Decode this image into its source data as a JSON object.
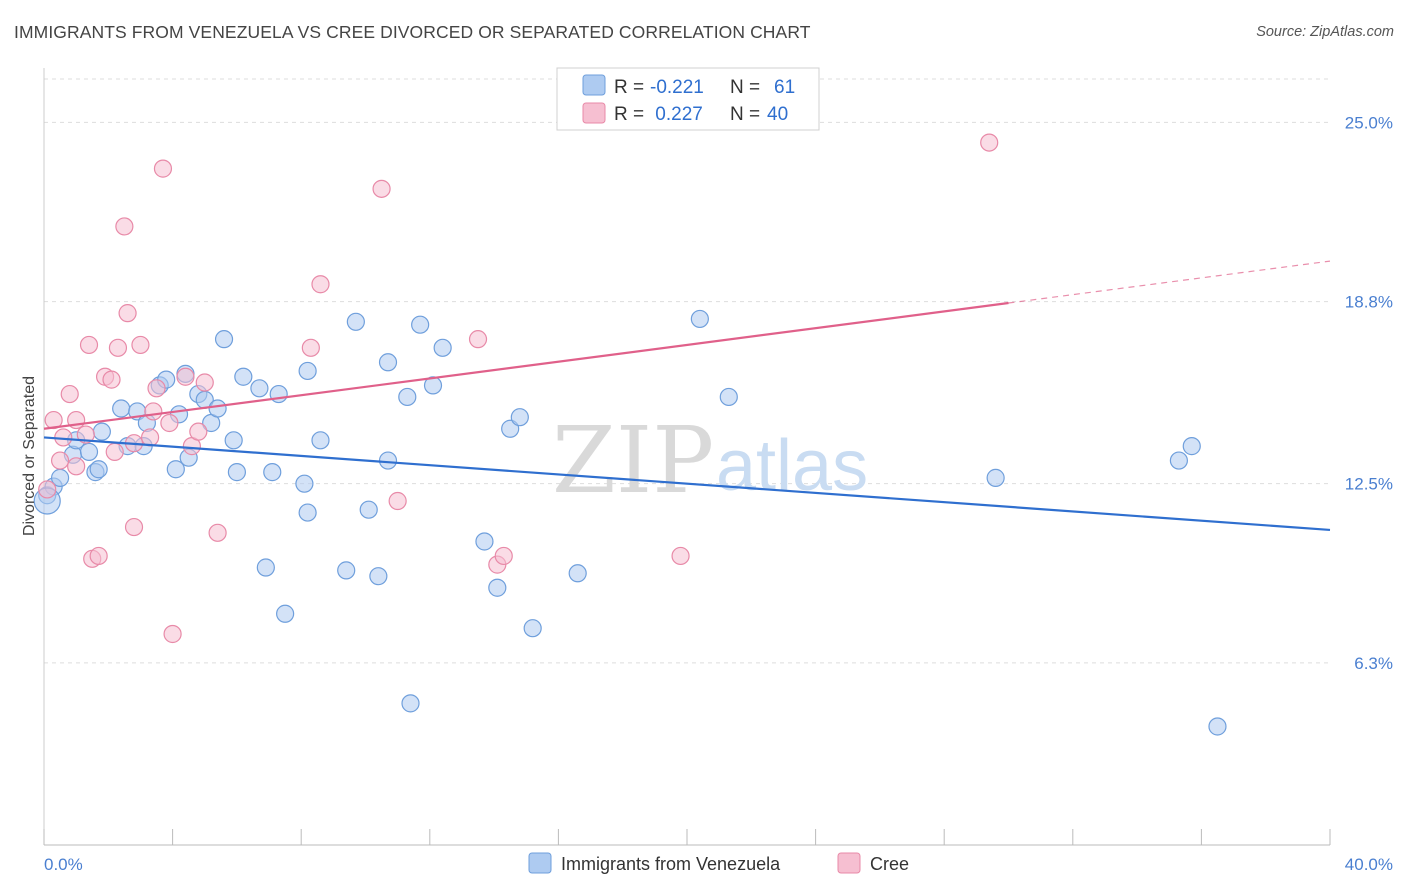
{
  "header": {
    "title": "IMMIGRANTS FROM VENEZUELA VS CREE DIVORCED OR SEPARATED CORRELATION CHART",
    "source": "Source: ZipAtlas.com"
  },
  "watermark": {
    "zip": "ZIP",
    "atlas": "atlas"
  },
  "colors": {
    "blue_fill": "#aecbf1",
    "blue_stroke": "#6f9fdc",
    "blue_line": "#2f6fcf",
    "pink_fill": "#f6bfd1",
    "pink_stroke": "#e88aa8",
    "pink_line": "#e0608a",
    "grid": "#dddddd",
    "axis_text": "#4a7fd0"
  },
  "legend": {
    "rows": [
      {
        "r_label": "R = ",
        "r_value": "-0.221",
        "n_label": "N = ",
        "n_value": "61"
      },
      {
        "r_label": "R = ",
        "r_value": " 0.227",
        "n_label": "N = ",
        "n_value": "40"
      }
    ]
  },
  "bottom_legend": [
    "Immigrants from Venezuela",
    "Cree"
  ],
  "chart_data": {
    "type": "scatter",
    "title": "IMMIGRANTS FROM VENEZUELA VS CREE DIVORCED OR SEPARATED CORRELATION CHART",
    "xlabel": "",
    "ylabel": "Divorced or Separated",
    "xlim": [
      0,
      40
    ],
    "ylim": [
      0,
      26.5
    ],
    "x_tick_labels": [
      "0.0%",
      "40.0%"
    ],
    "y_ticks": [
      6.3,
      12.5,
      18.8,
      25.0
    ],
    "y_tick_labels": [
      "6.3%",
      "12.5%",
      "18.8%",
      "25.0%"
    ],
    "grid": true,
    "legend_position": "top-center",
    "series": [
      {
        "name": "Immigrants from Venezuela",
        "color": "#aecbf1",
        "trend": {
          "x": [
            0,
            40
          ],
          "y": [
            14.1,
            10.9
          ],
          "dashed_from": null
        },
        "points": [
          [
            0.1,
            12.1
          ],
          [
            0.3,
            12.4
          ],
          [
            0.5,
            12.7
          ],
          [
            0.9,
            13.5
          ],
          [
            1.0,
            14.0
          ],
          [
            1.4,
            13.6
          ],
          [
            1.6,
            12.9
          ],
          [
            1.8,
            14.3
          ],
          [
            1.7,
            13.0
          ],
          [
            2.4,
            15.1
          ],
          [
            2.6,
            13.8
          ],
          [
            2.9,
            15.0
          ],
          [
            3.2,
            14.6
          ],
          [
            3.1,
            13.8
          ],
          [
            3.6,
            15.9
          ],
          [
            3.8,
            16.1
          ],
          [
            4.1,
            13.0
          ],
          [
            4.2,
            14.9
          ],
          [
            4.4,
            16.3
          ],
          [
            4.5,
            13.4
          ],
          [
            4.8,
            15.6
          ],
          [
            5.0,
            15.4
          ],
          [
            5.2,
            14.6
          ],
          [
            5.4,
            15.1
          ],
          [
            5.6,
            17.5
          ],
          [
            5.9,
            14.0
          ],
          [
            6.0,
            12.9
          ],
          [
            6.2,
            16.2
          ],
          [
            6.7,
            15.8
          ],
          [
            6.9,
            9.6
          ],
          [
            7.1,
            12.9
          ],
          [
            7.5,
            8.0
          ],
          [
            7.3,
            15.6
          ],
          [
            8.2,
            16.4
          ],
          [
            8.1,
            12.5
          ],
          [
            8.6,
            14.0
          ],
          [
            8.2,
            11.5
          ],
          [
            9.4,
            9.5
          ],
          [
            9.7,
            18.1
          ],
          [
            10.1,
            11.6
          ],
          [
            10.4,
            9.3
          ],
          [
            10.7,
            16.7
          ],
          [
            10.7,
            13.3
          ],
          [
            11.3,
            15.5
          ],
          [
            11.4,
            4.9
          ],
          [
            11.7,
            18.0
          ],
          [
            12.1,
            15.9
          ],
          [
            12.4,
            17.2
          ],
          [
            13.7,
            10.5
          ],
          [
            14.1,
            8.9
          ],
          [
            14.5,
            14.4
          ],
          [
            14.8,
            14.8
          ],
          [
            15.2,
            7.5
          ],
          [
            16.6,
            9.4
          ],
          [
            20.4,
            18.2
          ],
          [
            21.3,
            15.5
          ],
          [
            29.6,
            12.7
          ],
          [
            35.3,
            13.3
          ],
          [
            35.7,
            13.8
          ],
          [
            36.5,
            4.1
          ],
          [
            0.1,
            11.9
          ]
        ]
      },
      {
        "name": "Cree",
        "color": "#f6bfd1",
        "trend": {
          "x": [
            0,
            40
          ],
          "y": [
            14.4,
            20.2
          ],
          "dashed_from": 30
        },
        "points": [
          [
            0.1,
            12.3
          ],
          [
            0.3,
            14.7
          ],
          [
            0.5,
            13.3
          ],
          [
            0.6,
            14.1
          ],
          [
            0.8,
            15.6
          ],
          [
            1.0,
            14.7
          ],
          [
            1.0,
            13.1
          ],
          [
            1.3,
            14.2
          ],
          [
            1.4,
            17.3
          ],
          [
            1.5,
            9.9
          ],
          [
            1.7,
            10.0
          ],
          [
            1.9,
            16.2
          ],
          [
            2.1,
            16.1
          ],
          [
            2.2,
            13.6
          ],
          [
            2.3,
            17.2
          ],
          [
            2.5,
            21.4
          ],
          [
            2.6,
            18.4
          ],
          [
            2.8,
            13.9
          ],
          [
            2.8,
            11.0
          ],
          [
            3.0,
            17.3
          ],
          [
            3.3,
            14.1
          ],
          [
            3.4,
            15.0
          ],
          [
            3.5,
            15.8
          ],
          [
            3.7,
            23.4
          ],
          [
            3.9,
            14.6
          ],
          [
            4.0,
            7.3
          ],
          [
            4.4,
            16.2
          ],
          [
            4.6,
            13.8
          ],
          [
            4.8,
            14.3
          ],
          [
            5.0,
            16.0
          ],
          [
            5.4,
            10.8
          ],
          [
            8.3,
            17.2
          ],
          [
            8.6,
            19.4
          ],
          [
            10.5,
            22.7
          ],
          [
            11.0,
            11.9
          ],
          [
            13.5,
            17.5
          ],
          [
            14.1,
            9.7
          ],
          [
            19.8,
            10.0
          ],
          [
            29.4,
            24.3
          ],
          [
            14.3,
            10.0
          ]
        ]
      }
    ]
  }
}
